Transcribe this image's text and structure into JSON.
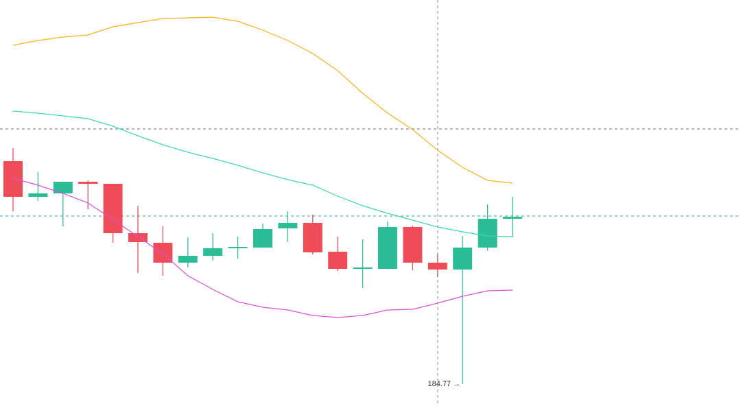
{
  "chart_data": {
    "type": "candlestick",
    "up_color": "#2bbd95",
    "down_color": "#ef4c5a",
    "ylim": [
      183.17,
      212.77
    ],
    "open": [
      201.02,
      198.42,
      198.67,
      199.52,
      199.37,
      195.77,
      195.07,
      193.62,
      194.12,
      194.67,
      194.72,
      196.12,
      196.52,
      194.42,
      193.17,
      193.17,
      196.22,
      193.62,
      193.12,
      194.72,
      196.82
    ],
    "high": [
      201.97,
      200.22,
      199.52,
      199.62,
      199.37,
      197.77,
      196.27,
      195.47,
      195.77,
      195.52,
      196.47,
      197.37,
      197.12,
      195.52,
      195.32,
      196.62,
      196.32,
      194.22,
      195.57,
      197.87,
      198.42
    ],
    "low": [
      197.37,
      198.12,
      196.27,
      197.52,
      195.07,
      192.87,
      192.67,
      193.27,
      193.77,
      193.92,
      194.72,
      195.12,
      194.22,
      193.02,
      191.77,
      193.17,
      193.07,
      192.57,
      184.77,
      194.52,
      195.47
    ],
    "close": [
      198.42,
      198.67,
      199.52,
      199.37,
      195.77,
      195.12,
      193.62,
      194.12,
      194.67,
      194.77,
      196.07,
      196.52,
      194.37,
      193.17,
      193.27,
      196.22,
      193.62,
      193.12,
      194.72,
      196.82,
      196.97
    ],
    "bands": [
      {
        "color": "#f5b21b",
        "values": [
          209.47,
          209.82,
          210.07,
          210.22,
          210.82,
          211.12,
          211.42,
          211.47,
          211.52,
          211.22,
          210.57,
          209.82,
          208.87,
          207.62,
          205.97,
          204.52,
          203.32,
          201.82,
          200.57,
          199.62,
          199.42
        ]
      },
      {
        "color": "#3dd6b2",
        "values": [
          204.67,
          204.52,
          204.32,
          204.12,
          203.57,
          202.87,
          202.22,
          201.67,
          201.22,
          200.72,
          200.17,
          199.67,
          199.27,
          198.47,
          197.77,
          197.22,
          196.72,
          196.22,
          195.87,
          195.57,
          195.52
        ]
      },
      {
        "color": "#d94fd6",
        "values": [
          199.77,
          199.27,
          198.67,
          197.97,
          196.77,
          195.52,
          194.27,
          192.67,
          191.67,
          190.77,
          190.37,
          190.17,
          189.77,
          189.62,
          189.77,
          190.17,
          190.22,
          190.67,
          191.17,
          191.57,
          191.62
        ]
      }
    ],
    "price_lines": [
      {
        "value": 203.37,
        "color": "#5f6b78"
      },
      {
        "value": 197.02,
        "color": "#2aa88a"
      }
    ],
    "low_label": "184.77 →"
  }
}
